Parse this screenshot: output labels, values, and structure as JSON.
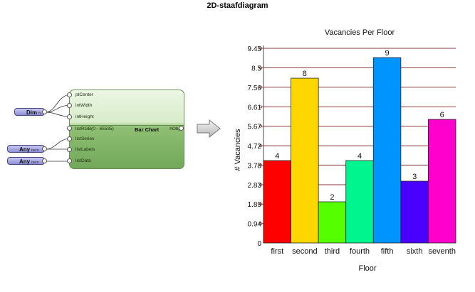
{
  "page_title": "2D-staafdiagram",
  "node": {
    "title": "Bar Chart",
    "inputs": [
      "ptCenter",
      "intWidth",
      "intHeight",
      "listRGB(0 - 65535)",
      "listSeries",
      "listLabels",
      "listData"
    ],
    "output": "hObj"
  },
  "sources": [
    {
      "name": "Dim",
      "suffix": "N"
    },
    {
      "name": "Any",
      "suffix": "item"
    },
    {
      "name": "Any",
      "suffix": "item"
    }
  ],
  "chart_data": {
    "type": "bar",
    "title": "Vacancies Per Floor",
    "xlabel": "Floor",
    "ylabel": "# Vacancies",
    "categories": [
      "first",
      "second",
      "third",
      "fourth",
      "fifth",
      "sixth",
      "seventh"
    ],
    "values": [
      4,
      8,
      2,
      4,
      9,
      3,
      6
    ],
    "colors": [
      "#ff0000",
      "#ffd700",
      "#55ff00",
      "#00f58e",
      "#0094ff",
      "#4a00ff",
      "#ff00cc"
    ],
    "y_ticks": [
      "0",
      "0.94",
      "1.89",
      "2.83",
      "3.78",
      "4.72",
      "5.67",
      "6.61",
      "7.56",
      "8.5",
      "9.45"
    ],
    "ylim": [
      0,
      9.45
    ],
    "grid_color": "#8b3a3a",
    "grid": true
  }
}
